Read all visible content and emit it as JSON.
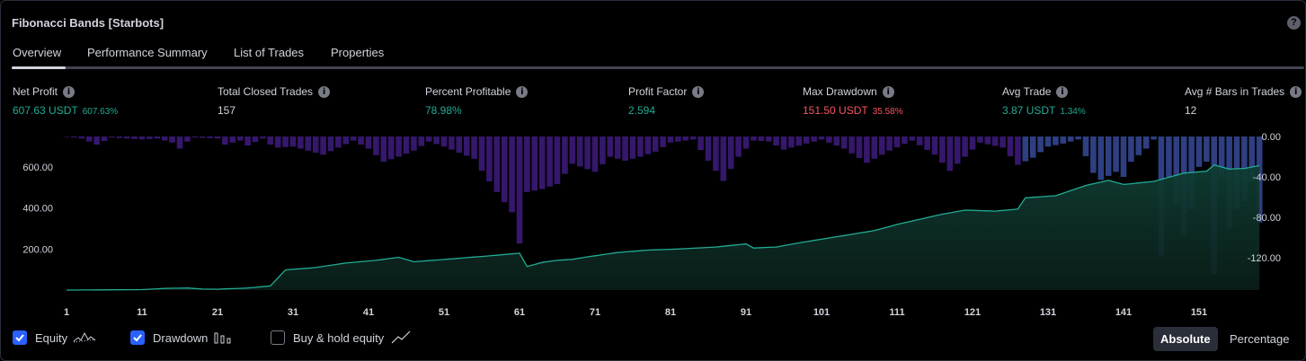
{
  "title": "Fibonacci Bands [Starbots]",
  "help_icon": "?",
  "tabs": [
    "Overview",
    "Performance Summary",
    "List of Trades",
    "Properties"
  ],
  "stats": {
    "net_profit": {
      "label": "Net Profit",
      "value": "607.63 USDT",
      "sub": "607.63%"
    },
    "total_closed_trades": {
      "label": "Total Closed Trades",
      "value": "157"
    },
    "percent_profitable": {
      "label": "Percent Profitable",
      "value": "78.98%"
    },
    "profit_factor": {
      "label": "Profit Factor",
      "value": "2.594"
    },
    "max_drawdown": {
      "label": "Max Drawdown",
      "value": "151.50 USDT",
      "sub": "35.58%"
    },
    "avg_trade": {
      "label": "Avg Trade",
      "value": "3.87 USDT",
      "sub": "1.34%"
    },
    "avg_bars": {
      "label": "Avg # Bars in Trades",
      "value": "12"
    }
  },
  "colors": {
    "green": "#22ab94",
    "red": "#f7525f",
    "drawdown": "#3d1f6b",
    "accent": "#2962ff"
  },
  "chart_data": {
    "type": "area",
    "x_ticks": [
      "1",
      "11",
      "21",
      "31",
      "41",
      "51",
      "61",
      "71",
      "81",
      "91",
      "101",
      "111",
      "121",
      "131",
      "141",
      "151"
    ],
    "left_axis_ticks": [
      "600.00",
      "400.00",
      "200.00"
    ],
    "right_axis_ticks": [
      "0.00",
      "-40.00",
      "-80.00",
      "-120.00"
    ],
    "equity_anchors": [
      [
        1,
        0
      ],
      [
        11,
        2
      ],
      [
        14,
        8
      ],
      [
        17,
        10
      ],
      [
        19,
        5
      ],
      [
        21,
        4
      ],
      [
        25,
        10
      ],
      [
        28,
        20
      ],
      [
        30,
        98
      ],
      [
        34,
        110
      ],
      [
        38,
        132
      ],
      [
        42,
        145
      ],
      [
        45,
        160
      ],
      [
        47,
        138
      ],
      [
        52,
        152
      ],
      [
        58,
        170
      ],
      [
        61,
        180
      ],
      [
        62,
        115
      ],
      [
        64,
        135
      ],
      [
        66,
        145
      ],
      [
        68,
        150
      ],
      [
        70,
        162
      ],
      [
        74,
        183
      ],
      [
        78,
        195
      ],
      [
        82,
        200
      ],
      [
        87,
        210
      ],
      [
        91,
        225
      ],
      [
        92,
        205
      ],
      [
        95,
        210
      ],
      [
        98,
        230
      ],
      [
        103,
        260
      ],
      [
        108,
        290
      ],
      [
        111,
        320
      ],
      [
        114,
        345
      ],
      [
        117,
        370
      ],
      [
        120,
        390
      ],
      [
        124,
        385
      ],
      [
        127,
        395
      ],
      [
        128,
        450
      ],
      [
        132,
        460
      ],
      [
        136,
        510
      ],
      [
        139,
        535
      ],
      [
        141,
        515
      ],
      [
        145,
        530
      ],
      [
        149,
        570
      ],
      [
        152,
        580
      ],
      [
        153,
        610
      ],
      [
        155,
        590
      ],
      [
        157,
        593
      ],
      [
        159,
        607
      ]
    ],
    "drawdown_anchors": [
      [
        1,
        0
      ],
      [
        3,
        -2
      ],
      [
        4,
        -5
      ],
      [
        5,
        -8
      ],
      [
        7,
        -1
      ],
      [
        11,
        -3
      ],
      [
        13,
        -2
      ],
      [
        15,
        -6
      ],
      [
        16,
        -12
      ],
      [
        17,
        -5
      ],
      [
        18,
        -1
      ],
      [
        21,
        -2
      ],
      [
        22,
        -8
      ],
      [
        24,
        -4
      ],
      [
        25,
        -9
      ],
      [
        27,
        -2
      ],
      [
        28,
        -8
      ],
      [
        29,
        -11
      ],
      [
        31,
        -10
      ],
      [
        35,
        -18
      ],
      [
        37,
        -11
      ],
      [
        39,
        -4
      ],
      [
        41,
        -12
      ],
      [
        43,
        -25
      ],
      [
        45,
        -20
      ],
      [
        47,
        -14
      ],
      [
        49,
        -5
      ],
      [
        51,
        -10
      ],
      [
        55,
        -22
      ],
      [
        56,
        -34
      ],
      [
        58,
        -55
      ],
      [
        60,
        -75
      ],
      [
        61,
        -106
      ],
      [
        62,
        -55
      ],
      [
        64,
        -52
      ],
      [
        66,
        -47
      ],
      [
        68,
        -27
      ],
      [
        71,
        -35
      ],
      [
        73,
        -20
      ],
      [
        75,
        -24
      ],
      [
        77,
        -20
      ],
      [
        79,
        -15
      ],
      [
        81,
        -6
      ],
      [
        84,
        -3
      ],
      [
        86,
        -24
      ],
      [
        88,
        -44
      ],
      [
        90,
        -20
      ],
      [
        92,
        -4
      ],
      [
        94,
        -5
      ],
      [
        96,
        -13
      ],
      [
        98,
        -9
      ],
      [
        101,
        -3
      ],
      [
        104,
        -12
      ],
      [
        107,
        -26
      ],
      [
        110,
        -14
      ],
      [
        113,
        -4
      ],
      [
        116,
        -18
      ],
      [
        118,
        -34
      ],
      [
        120,
        -20
      ],
      [
        122,
        -6
      ],
      [
        125,
        -11
      ],
      [
        127,
        -28
      ],
      [
        129,
        -21
      ],
      [
        131,
        -10
      ],
      [
        133,
        -7
      ],
      [
        135,
        -3
      ],
      [
        137,
        -36
      ],
      [
        138,
        -43
      ],
      [
        140,
        -35
      ],
      [
        141,
        -40
      ],
      [
        142,
        -25
      ],
      [
        144,
        -12
      ],
      [
        145,
        -3
      ],
      [
        146,
        -118
      ],
      [
        147,
        -40
      ],
      [
        149,
        -98
      ],
      [
        150,
        -72
      ],
      [
        151,
        -30
      ],
      [
        152,
        -25
      ],
      [
        153,
        -136
      ],
      [
        154,
        -40
      ],
      [
        155,
        -90
      ],
      [
        156,
        -72
      ],
      [
        157,
        -64
      ],
      [
        158,
        -44
      ],
      [
        159,
        -85
      ]
    ]
  },
  "legend": [
    {
      "label": "Equity",
      "icon": "equity-icon"
    },
    {
      "label": "Drawdown",
      "icon": "drawdown-icon"
    },
    {
      "label": "Buy & hold equity",
      "icon": "buyhold-icon"
    }
  ],
  "modes": [
    "Absolute",
    "Percentage"
  ]
}
